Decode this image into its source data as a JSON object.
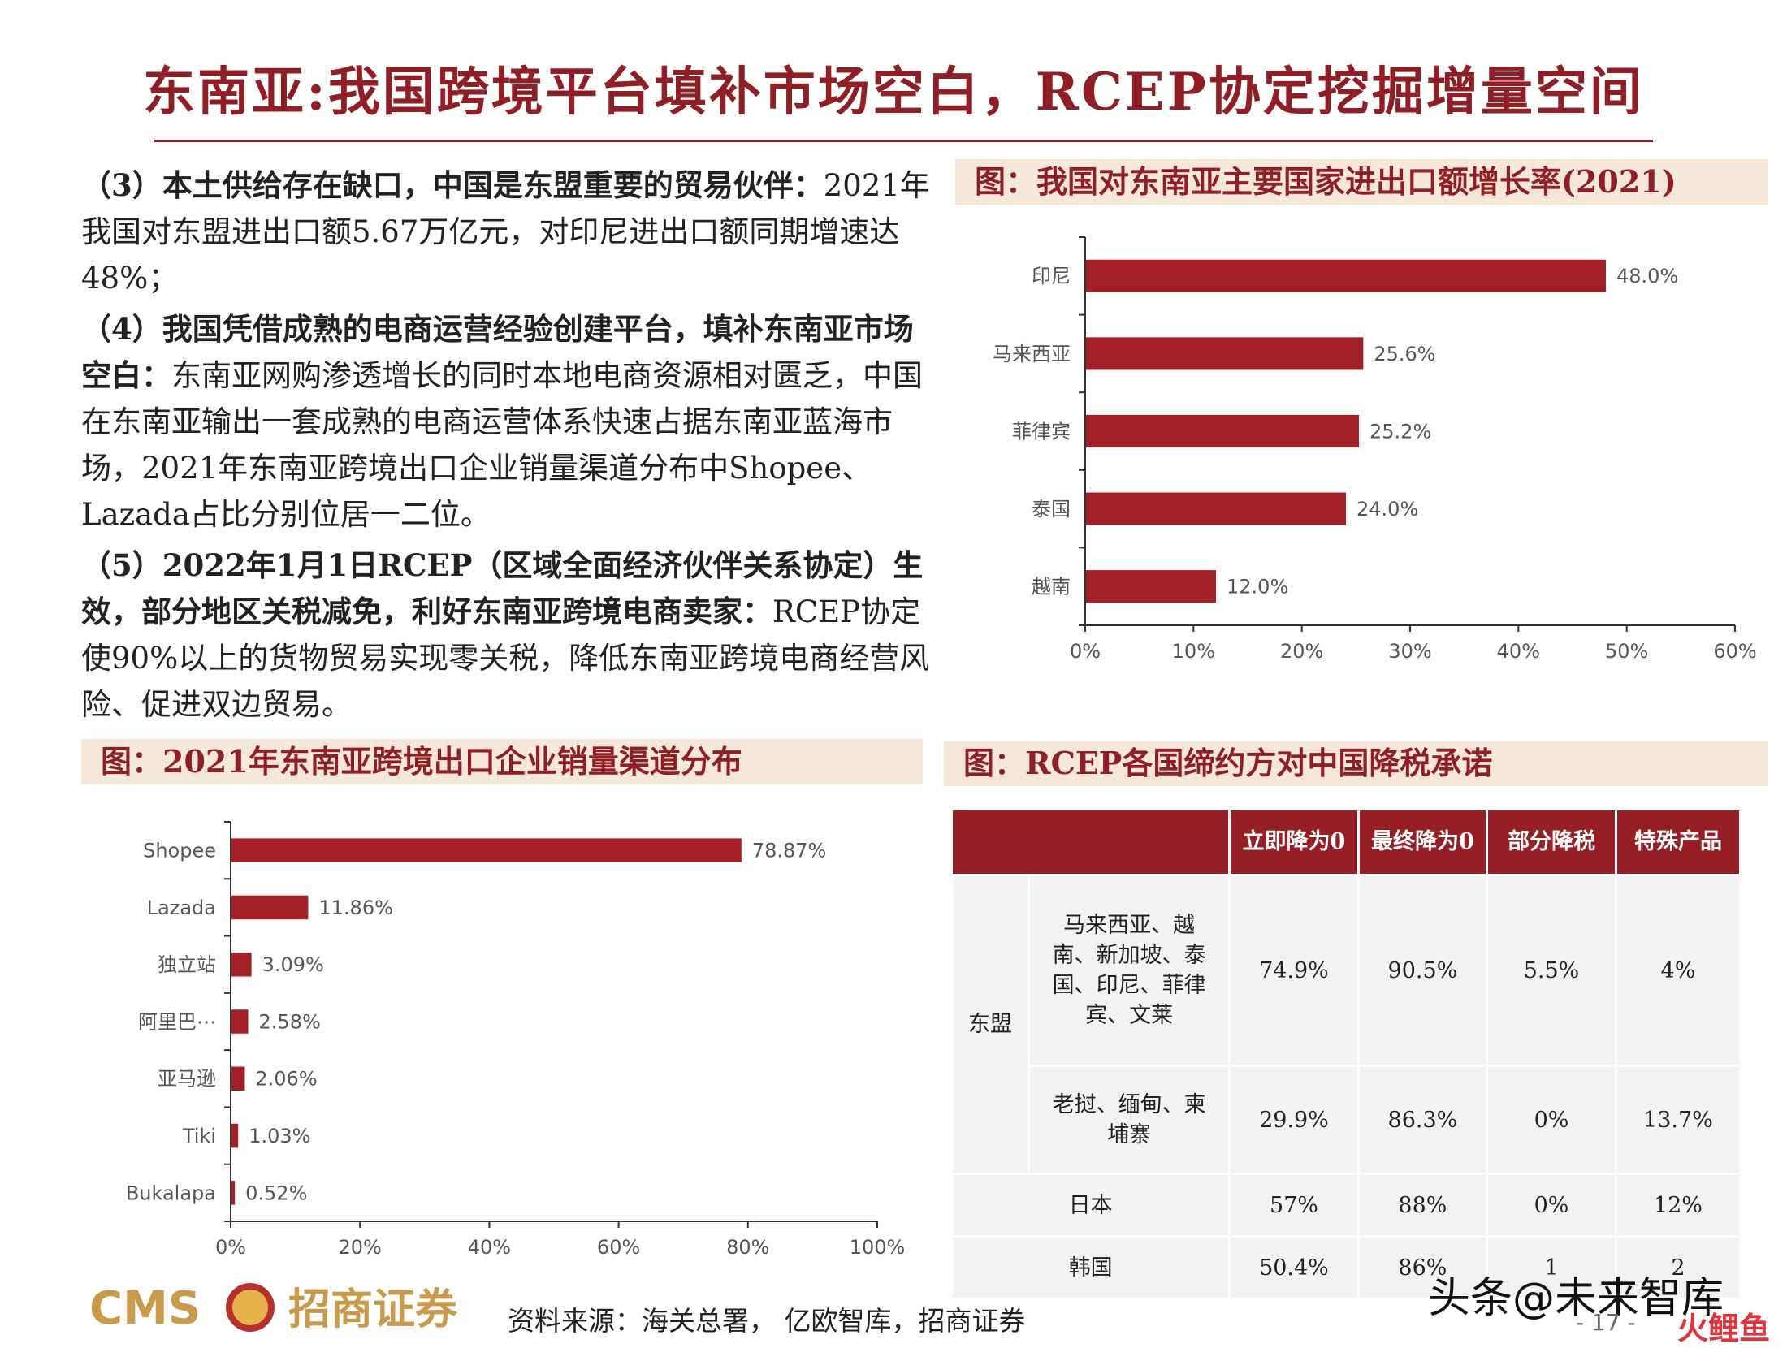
{
  "title": "东南亚:我国跨境平台填补市场空白，RCEP协定挖掘增量空间",
  "body": {
    "p3_bold": "（3）本土供给存在缺口，中国是东盟重要的贸易伙伴：",
    "p3_text": "2021年我国对东盟进出口额5.67万亿元，对印尼进出口额同期增速达48%；",
    "p4_bold": "（4）我国凭借成熟的电商运营经验创建平台，填补东南亚市场空白：",
    "p4_text": "东南亚网购渗透增长的同时本地电商资源相对匮乏，中国在东南亚输出一套成熟的电商运营体系快速占据东南亚蓝海市场，2021年东南亚跨境出口企业销量渠道分布中Shopee、Lazada占比分别位居一二位。",
    "p5_bold": "（5）2022年1月1日RCEP（区域全面经济伙伴关系协定）生效，部分地区关税减免，利好东南亚跨境电商卖家：",
    "p5_text": "RCEP协定使90%以上的货物贸易实现零关税，降低东南亚跨境电商经营风险、促进双边贸易。"
  },
  "captions": {
    "chart1": "图：我国对东南亚主要国家进出口额增长率(2021)",
    "chart2": "图：2021年东南亚跨境出口企业销量渠道分布",
    "table": "图：RCEP各国缔约方对中国降税承诺"
  },
  "chart_data": [
    {
      "type": "bar",
      "orientation": "horizontal",
      "title": "图：我国对东南亚主要国家进出口额增长率(2021)",
      "categories": [
        "印尼",
        "马来西亚",
        "菲律宾",
        "泰国",
        "越南"
      ],
      "values": [
        48.0,
        25.6,
        25.2,
        24.0,
        12.0
      ],
      "value_labels": [
        "48.0%",
        "25.6%",
        "25.2%",
        "24.0%",
        "12.0%"
      ],
      "xlim": [
        0,
        60
      ],
      "ticks": [
        "0%",
        "10%",
        "20%",
        "30%",
        "40%",
        "50%",
        "60%"
      ],
      "color": "#a31f26",
      "grid": false
    },
    {
      "type": "bar",
      "orientation": "horizontal",
      "title": "图：2021年东南亚跨境出口企业销量渠道分布",
      "categories": [
        "Shopee",
        "Lazada",
        "独立站",
        "阿里巴⋯",
        "亚马逊",
        "Tiki",
        "Bukalapa"
      ],
      "values": [
        78.87,
        11.86,
        3.09,
        2.58,
        2.06,
        1.03,
        0.52
      ],
      "value_labels": [
        "78.87%",
        "11.86%",
        "3.09%",
        "2.58%",
        "2.06%",
        "1.03%",
        "0.52%"
      ],
      "xlim": [
        0,
        100
      ],
      "ticks": [
        "0%",
        "20%",
        "40%",
        "60%",
        "80%",
        "100%"
      ],
      "color": "#a31f26",
      "grid": false
    }
  ],
  "table": {
    "headers": [
      "",
      "立即降为0",
      "最终降为0",
      "部分降税",
      "特殊产品"
    ],
    "group_label": "东盟",
    "rows": [
      {
        "country": "马来西亚、越南、新加坡、泰国、印尼、菲律宾、文莱",
        "values": [
          "74.9%",
          "90.5%",
          "5.5%",
          "4%"
        ]
      },
      {
        "country": "老挝、缅甸、柬埔寨",
        "values": [
          "29.9%",
          "86.3%",
          "0%",
          "13.7%"
        ]
      },
      {
        "country": "日本",
        "values": [
          "57%",
          "88%",
          "0%",
          "12%"
        ]
      },
      {
        "country": "韩国",
        "values": [
          "50.4%",
          "86%",
          "1",
          "2"
        ]
      }
    ]
  },
  "footer": {
    "logo_text": "CMS",
    "logo_cn": "招商证券",
    "source": "资料来源：海关总署， 亿欧智库，招商证券",
    "page": "- 17 -",
    "watermark": "头条@未来智库",
    "watermark2": "火鲤鱼"
  },
  "colors": {
    "accent": "#8f1f24",
    "bar": "#a31f26",
    "caption_bg": "#f6e8d9"
  }
}
